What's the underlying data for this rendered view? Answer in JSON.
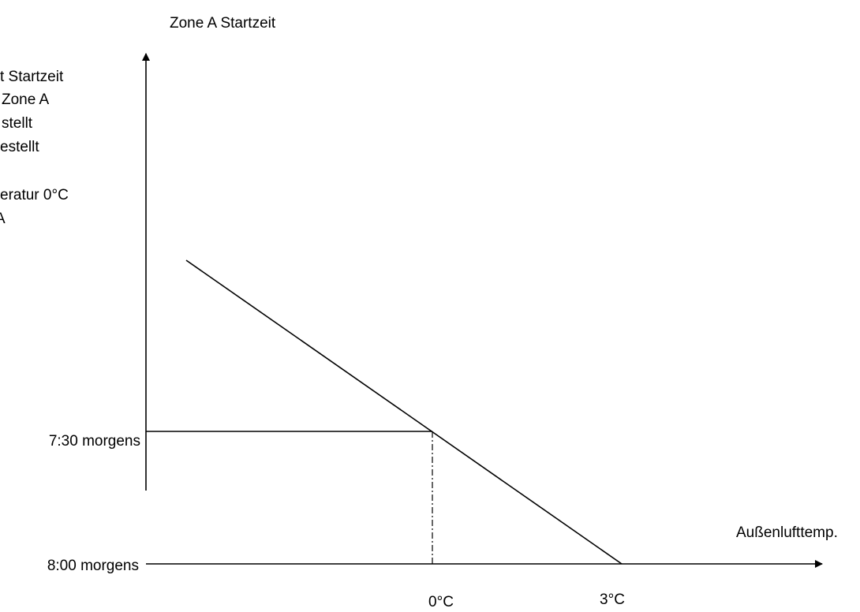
{
  "axis_title": "Zone A Startzeit",
  "note_lines": [
    "t Startzeit",
    "Zone A",
    "stellt",
    "estellt",
    "eratur 0°C",
    "A"
  ],
  "y_labels": [
    "7:30 morgens",
    "8:00 morgens"
  ],
  "x_axis_label": "Außenlufttemp.",
  "x_labels": [
    "0°C",
    "3°C"
  ]
}
